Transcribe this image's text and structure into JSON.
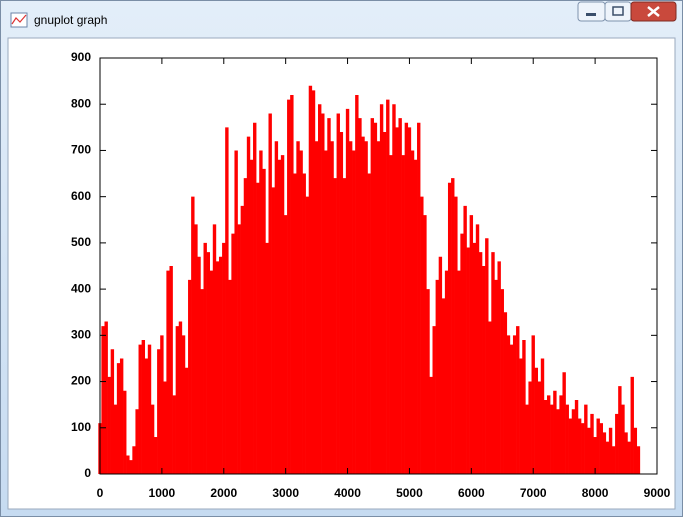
{
  "window_title": "gnuplot graph",
  "chart_data": {
    "type": "impulse",
    "color": "#ff0000",
    "xlim": [
      0,
      9000
    ],
    "ylim": [
      0,
      900
    ],
    "xticks": [
      0,
      1000,
      2000,
      3000,
      4000,
      5000,
      6000,
      7000,
      8000,
      9000
    ],
    "yticks": [
      0,
      100,
      200,
      300,
      400,
      500,
      600,
      700,
      800,
      900
    ],
    "x": [
      0,
      50,
      100,
      150,
      200,
      250,
      300,
      350,
      400,
      450,
      500,
      550,
      600,
      650,
      700,
      750,
      800,
      850,
      900,
      950,
      1000,
      1050,
      1100,
      1150,
      1200,
      1250,
      1300,
      1350,
      1400,
      1450,
      1500,
      1550,
      1600,
      1650,
      1700,
      1750,
      1800,
      1850,
      1900,
      1950,
      2000,
      2050,
      2100,
      2150,
      2200,
      2250,
      2300,
      2350,
      2400,
      2450,
      2500,
      2550,
      2600,
      2650,
      2700,
      2750,
      2800,
      2850,
      2900,
      2950,
      3000,
      3050,
      3100,
      3150,
      3200,
      3250,
      3300,
      3350,
      3400,
      3450,
      3500,
      3550,
      3600,
      3650,
      3700,
      3750,
      3800,
      3850,
      3900,
      3950,
      4000,
      4050,
      4100,
      4150,
      4200,
      4250,
      4300,
      4350,
      4400,
      4450,
      4500,
      4550,
      4600,
      4650,
      4700,
      4750,
      4800,
      4850,
      4900,
      4950,
      5000,
      5050,
      5100,
      5150,
      5200,
      5250,
      5300,
      5350,
      5400,
      5450,
      5500,
      5550,
      5600,
      5650,
      5700,
      5750,
      5800,
      5850,
      5900,
      5950,
      6000,
      6050,
      6100,
      6150,
      6200,
      6250,
      6300,
      6350,
      6400,
      6450,
      6500,
      6550,
      6600,
      6650,
      6700,
      6750,
      6800,
      6850,
      6900,
      6950,
      7000,
      7050,
      7100,
      7150,
      7200,
      7250,
      7300,
      7350,
      7400,
      7450,
      7500,
      7550,
      7600,
      7650,
      7700,
      7750,
      7800,
      7850,
      7900,
      7950,
      8000,
      8050,
      8100,
      8150,
      8200,
      8250,
      8300,
      8350,
      8400,
      8450,
      8500,
      8550,
      8600,
      8650,
      8700
    ],
    "values": [
      110,
      320,
      330,
      210,
      270,
      150,
      240,
      250,
      180,
      40,
      30,
      60,
      140,
      280,
      290,
      250,
      280,
      150,
      80,
      270,
      300,
      200,
      440,
      450,
      170,
      320,
      330,
      300,
      230,
      420,
      600,
      540,
      470,
      400,
      500,
      480,
      440,
      540,
      460,
      470,
      500,
      750,
      420,
      520,
      700,
      540,
      580,
      640,
      730,
      680,
      760,
      630,
      700,
      660,
      500,
      780,
      620,
      720,
      680,
      690,
      560,
      810,
      820,
      650,
      720,
      700,
      650,
      600,
      840,
      830,
      720,
      800,
      780,
      700,
      770,
      720,
      640,
      780,
      740,
      640,
      790,
      720,
      700,
      820,
      770,
      730,
      720,
      650,
      770,
      760,
      720,
      800,
      740,
      810,
      690,
      800,
      750,
      770,
      690,
      760,
      750,
      700,
      680,
      760,
      600,
      560,
      400,
      210,
      320,
      420,
      470,
      380,
      440,
      630,
      640,
      600,
      440,
      520,
      580,
      490,
      560,
      500,
      540,
      480,
      450,
      510,
      330,
      480,
      420,
      460,
      400,
      350,
      300,
      280,
      300,
      320,
      250,
      290,
      150,
      200,
      300,
      230,
      200,
      250,
      160,
      170,
      150,
      180,
      140,
      170,
      220,
      150,
      120,
      140,
      160,
      120,
      110,
      150,
      100,
      130,
      80,
      120,
      110,
      90,
      70,
      100,
      60,
      130,
      190,
      150,
      90,
      70,
      210,
      100,
      60
    ]
  }
}
